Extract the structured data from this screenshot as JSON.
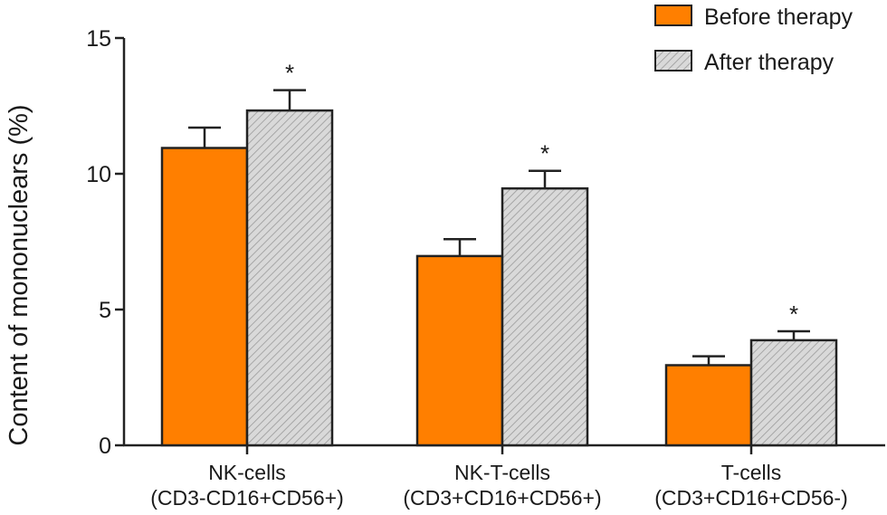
{
  "chart_data": {
    "type": "bar",
    "ylabel": "Content of mononuclears (%)",
    "ylim": [
      0,
      15
    ],
    "yticks": [
      0,
      5,
      10,
      15
    ],
    "categories": [
      {
        "name": "NK-cells",
        "sub": "(CD3-CD16+CD56+)"
      },
      {
        "name": "NK-T-cells",
        "sub": "(CD3+CD16+CD56+)"
      },
      {
        "name": "T-cells",
        "sub": "(CD3+CD16+CD56-)"
      }
    ],
    "series": [
      {
        "name": "Before therapy",
        "color": "#ff7f00",
        "pattern": "solid",
        "values": [
          10.95,
          6.97,
          2.95
        ],
        "errors": [
          0.75,
          0.62,
          0.33
        ],
        "significance": [
          "",
          "",
          ""
        ]
      },
      {
        "name": "After therapy",
        "color": "#d4d4d4",
        "pattern": "hatched",
        "values": [
          12.33,
          9.46,
          3.87
        ],
        "errors": [
          0.75,
          0.65,
          0.33
        ],
        "significance": [
          "*",
          "*",
          "*"
        ]
      }
    ],
    "legend_position": "top-right"
  }
}
